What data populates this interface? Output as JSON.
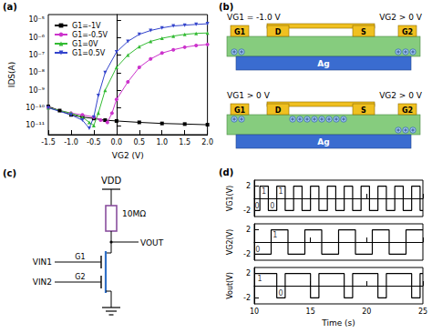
{
  "panel_labels": [
    "(a)",
    "(b)",
    "(c)",
    "(d)"
  ],
  "chart_data": [
    {
      "type": "line",
      "log": "y",
      "xlabel": "VG2 (V)",
      "ylabel": "IDS(A)",
      "xlim": [
        -1.5,
        2.0
      ],
      "xticks": [
        -1.5,
        {
          "value": -1,
          "label": "-1.0"
        },
        -0.5,
        {
          "value": 0,
          "label": "0.0"
        },
        0.5,
        {
          "value": 1,
          "label": "1.0"
        },
        1.5,
        {
          "value": 2,
          "label": "2.0"
        }
      ],
      "ylim": [
        3e-12,
        2e-05
      ],
      "yticks": [
        {
          "value": 1e-11,
          "label": "10⁻¹¹"
        },
        {
          "value": 1e-10,
          "label": "10⁻¹⁰"
        },
        {
          "value": 1e-09,
          "label": "10⁻⁹"
        },
        {
          "value": 1e-08,
          "label": "10⁻⁸"
        },
        {
          "value": 1e-07,
          "label": "10⁻⁷"
        },
        {
          "value": 1e-06,
          "label": "10⁻⁶"
        },
        {
          "value": 1e-05,
          "label": "10⁻⁵"
        }
      ],
      "grid": false,
      "legend": "upper left",
      "series": [
        {
          "name": "G1=-1V",
          "color": "#000000",
          "marker": "square",
          "x": [
            -1.5,
            -1.25,
            -1.0,
            -0.75,
            -0.5,
            -0.25,
            0.0,
            0.5,
            1.0,
            1.5,
            2.0
          ],
          "values": [
            1.2e-10,
            7e-11,
            4e-11,
            3e-11,
            2.5e-11,
            2e-11,
            1.8e-11,
            1.5e-11,
            1.3e-11,
            1.2e-11,
            1.1e-11
          ]
        },
        {
          "name": "G1=-0.5V",
          "color": "#cc33cc",
          "marker": "circle",
          "x": [
            -1.5,
            -1.0,
            -0.75,
            -0.5,
            -0.35,
            -0.2,
            -0.1,
            0.0,
            0.25,
            0.5,
            0.75,
            1.0,
            1.25,
            1.5,
            1.75,
            2.0
          ],
          "values": [
            1e-10,
            5e-11,
            4e-11,
            3e-11,
            2e-11,
            1.5e-11,
            5e-11,
            3e-10,
            3e-09,
            2e-08,
            6e-08,
            1.3e-07,
            2e-07,
            2.8e-07,
            3.5e-07,
            4e-07
          ]
        },
        {
          "name": "G1=0V",
          "color": "#33bb33",
          "marker": "triangle-up",
          "x": [
            -1.5,
            -1.0,
            -0.75,
            -0.6,
            -0.5,
            -0.4,
            -0.25,
            0.0,
            0.25,
            0.5,
            0.75,
            1.0,
            1.25,
            1.5,
            1.75,
            2.0
          ],
          "values": [
            1e-10,
            5e-11,
            3e-11,
            1.5e-11,
            1e-11,
            5e-11,
            1e-09,
            2e-08,
            1e-07,
            3e-07,
            6e-07,
            9e-07,
            1.2e-06,
            1.5e-06,
            1.7e-06,
            1.8e-06
          ]
        },
        {
          "name": "G1=0.5V",
          "color": "#3344cc",
          "marker": "triangle-down",
          "x": [
            -1.5,
            -1.0,
            -0.75,
            -0.6,
            -0.5,
            -0.4,
            -0.25,
            0.0,
            0.25,
            0.5,
            0.75,
            1.0,
            1.25,
            1.5,
            1.75,
            2.0
          ],
          "values": [
            1e-10,
            4e-11,
            2e-11,
            7e-12,
            3e-11,
            5e-10,
            1e-08,
            1.5e-07,
            6e-07,
            1.5e-06,
            2.5e-06,
            3.5e-06,
            4.5e-06,
            5e-06,
            5.5e-06,
            6e-06
          ]
        }
      ]
    },
    {
      "type": "step",
      "ylabel": "VG1(V)",
      "color": "#000000",
      "tick_labels": "y",
      "xlim": [
        10,
        25
      ],
      "xticks": [
        10,
        15,
        20,
        25
      ],
      "ylim": [
        -3,
        3
      ],
      "yticks": [
        -2,
        2
      ],
      "x": [
        10,
        10.5,
        11.25,
        12,
        12.75,
        13.5,
        14.25,
        15,
        15.75,
        16.5,
        17.25,
        18,
        18.75,
        19.5,
        20.25,
        21,
        21.75,
        22.5,
        23.25,
        24,
        24.75,
        25
      ],
      "values": [
        -2,
        2,
        -2,
        2,
        -2,
        2,
        -2,
        2,
        -2,
        2,
        -2,
        2,
        -2,
        2,
        -2,
        2,
        -2,
        2,
        -2,
        2,
        -2,
        -2
      ],
      "annotations": [
        {
          "text": "1",
          "x": 10.85,
          "y": 1.2
        },
        {
          "text": "1",
          "x": 12.35,
          "y": 1.2
        },
        {
          "text": "0",
          "x": 10.25,
          "y": -1.2
        },
        {
          "text": "0",
          "x": 11.6,
          "y": -1.2
        }
      ]
    },
    {
      "type": "step",
      "ylabel": "VG2(V)",
      "color": "#000000",
      "tick_labels": "y",
      "xlim": [
        10,
        25
      ],
      "xticks": [
        10,
        15,
        20,
        25
      ],
      "ylim": [
        -3,
        3
      ],
      "yticks": [
        -2,
        2
      ],
      "x": [
        10,
        11.5,
        13,
        14.5,
        16,
        17.5,
        19,
        20.5,
        22,
        23.5,
        25
      ],
      "values": [
        -2,
        2,
        -2,
        2,
        -2,
        2,
        -2,
        2,
        -2,
        2,
        2
      ],
      "annotations": [
        {
          "text": "1",
          "x": 11.85,
          "y": 1.2
        },
        {
          "text": "0",
          "x": 10.3,
          "y": -1.2
        }
      ]
    },
    {
      "type": "step",
      "ylabel": "Vout(V)",
      "xlabel": "Time (s)",
      "color": "#000000",
      "xlim": [
        10,
        25
      ],
      "xticks": [
        10,
        15,
        20,
        25
      ],
      "ylim": [
        -3,
        3
      ],
      "yticks": [
        -2,
        2
      ],
      "x": [
        10,
        12,
        12.75,
        15,
        15.75,
        18,
        18.75,
        21,
        21.75,
        24,
        24.75,
        25
      ],
      "values": [
        2,
        -2,
        2,
        -2,
        2,
        -2,
        2,
        -2,
        2,
        -2,
        2,
        2
      ],
      "annotations": [
        {
          "text": "1",
          "x": 10.5,
          "y": 1.2
        },
        {
          "text": "0",
          "x": 12.35,
          "y": -1.2
        }
      ]
    }
  ],
  "diagram_b": {
    "devices": [
      {
        "left_bias": "VG1 = -1.0 V",
        "right_bias": "VG2 > 0 V",
        "electrodes": [
          "G1",
          "D",
          "S",
          "G2"
        ],
        "substrate": "Ag"
      },
      {
        "left_bias": "VG1 > 0 V",
        "right_bias": "VG2 > 0 V",
        "electrodes": [
          "G1",
          "D",
          "S",
          "G2"
        ],
        "substrate": "Ag"
      }
    ]
  },
  "diagram_c": {
    "supply": "VDD",
    "resistor": "10MΩ",
    "output": "VOUT",
    "inputs": [
      "VIN1",
      "VIN2"
    ],
    "gates": [
      "G1",
      "G2"
    ]
  }
}
